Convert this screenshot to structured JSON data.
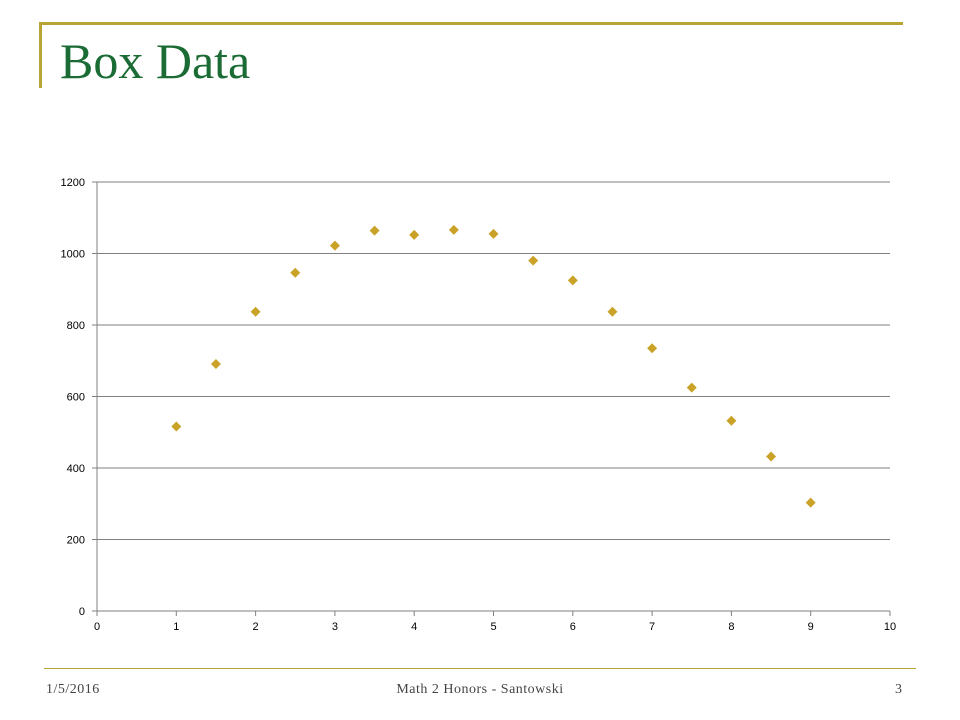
{
  "slide": {
    "title": "Box Data",
    "footer_date": "1/5/2016",
    "footer_center": "Math 2 Honors - Santowski",
    "page_number": "3"
  },
  "colors": {
    "title": "#1b6b34",
    "frame": "#b8a434",
    "marker": "#c9a227",
    "grid": "#808080"
  },
  "chart_data": {
    "type": "scatter",
    "title": "",
    "xlabel": "",
    "ylabel": "",
    "xlim": [
      0,
      10
    ],
    "ylim": [
      0,
      1200
    ],
    "x_ticks": [
      "0",
      "1",
      "2",
      "3",
      "4",
      "5",
      "6",
      "7",
      "8",
      "9",
      "10"
    ],
    "y_ticks": [
      "0",
      "200",
      "400",
      "600",
      "800",
      "1000",
      "1200"
    ],
    "grid": "horizontal",
    "legend": "none",
    "marker": "diamond",
    "series": [
      {
        "x": [
          1,
          1.5,
          2,
          2.5,
          3,
          3.5,
          4,
          4.5,
          5,
          5.5,
          6,
          6.5,
          7,
          7.5,
          8,
          8.5,
          9
        ],
        "y": [
          516,
          691,
          837,
          946,
          1022,
          1064,
          1052,
          1066,
          1055,
          980,
          925,
          837,
          735,
          625,
          532,
          432,
          303
        ]
      }
    ]
  }
}
